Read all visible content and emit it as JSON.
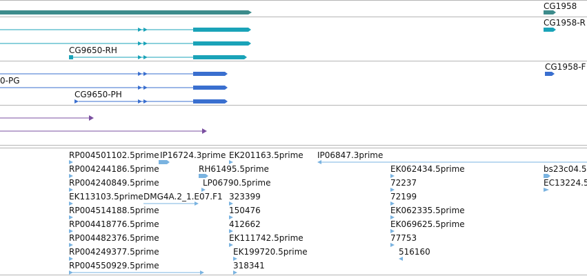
{
  "colors": {
    "gene": "#3d8c8c",
    "rna_teal": "#1aa3b8",
    "rna_blue": "#3a6fcf",
    "ncrna_purple": "#7a4fa0",
    "est": "#7ab3e0",
    "divider": "#b4b4b4"
  },
  "tracks": {
    "gene": {
      "label_right": "CG1958"
    },
    "transcripts_teal": {
      "label_left": "CG9650-RH",
      "label_right": "CG1958-R"
    },
    "transcripts_blue": {
      "label_left_a": "0-PG",
      "label_left_b": "CG9650-PH",
      "label_right": "CG1958-F"
    },
    "est_labels": [
      "RP004501102.5prime",
      "IP16724.3prime",
      "EK201163.5prime",
      "IP06847.3prime",
      "RP004244186.5prime",
      "RH61495.5prime",
      "EK062434.5prime",
      "bs23c04.5",
      "RP004240849.5prime",
      "LP06790.5prime",
      "72237",
      "EC13224.5",
      "EK113103.5prime",
      "DMG4A.2_1.E07.F1",
      "323399",
      "72199",
      "RP004514188.5prime",
      "150476",
      "EK062335.5prime",
      "RP004418776.5prime",
      "412662",
      "EK069625.5prime",
      "RP004482376.5prime",
      "EK111742.5prime",
      "77753",
      "RP004249377.5prime",
      "EK199720.5prime",
      "516160",
      "RP004550929.5prime",
      "318341"
    ]
  }
}
